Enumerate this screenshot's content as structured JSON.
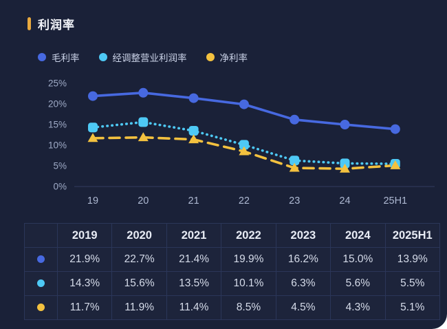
{
  "title": "利润率",
  "colors": {
    "background": "#1A2138",
    "accent_bar": "#E9A93F",
    "axis_text": "#9FABC7",
    "xaxis_text": "#AEB9D2",
    "axis_line": "#2A3352",
    "table_border": "#2B3659",
    "blue": "#4769E0",
    "cyan": "#4EC9F5",
    "yellow": "#F3C13F"
  },
  "chart_data": {
    "type": "line",
    "title": "利润率",
    "categories": [
      "19",
      "20",
      "21",
      "22",
      "23",
      "24",
      "25H1"
    ],
    "series": [
      {
        "key": "gross-margin",
        "name": "毛利率",
        "color": "#4769E0",
        "marker": "circle",
        "line": "solid",
        "values": [
          21.9,
          22.7,
          21.4,
          19.9,
          16.2,
          15.0,
          13.9
        ]
      },
      {
        "key": "adjusted-operating-margin",
        "name": "经调整营业利润率",
        "color": "#4EC9F5",
        "marker": "square",
        "line": "dotted",
        "values": [
          14.3,
          15.6,
          13.5,
          10.1,
          6.3,
          5.6,
          5.5
        ]
      },
      {
        "key": "net-margin",
        "name": "净利率",
        "color": "#F3C13F",
        "marker": "triangle",
        "line": "dashed",
        "values": [
          11.7,
          11.9,
          11.4,
          8.5,
          4.5,
          4.3,
          5.1
        ]
      }
    ],
    "ylim": [
      0,
      25
    ],
    "yticks": [
      "25%",
      "20%",
      "15%",
      "10%",
      "5%",
      "0%"
    ],
    "ytick_values": [
      25,
      20,
      15,
      10,
      5,
      0
    ],
    "grid": false,
    "legend_position": "top"
  },
  "table": {
    "headers": [
      "",
      "2019",
      "2020",
      "2021",
      "2022",
      "2023",
      "2024",
      "2025H1"
    ],
    "rows": [
      {
        "series": "毛利率",
        "dot_color": "#4769E0",
        "values": [
          "21.9%",
          "22.7%",
          "21.4%",
          "19.9%",
          "16.2%",
          "15.0%",
          "13.9%"
        ]
      },
      {
        "series": "经调整营业利润率",
        "dot_color": "#4EC9F5",
        "values": [
          "14.3%",
          "15.6%",
          "13.5%",
          "10.1%",
          "6.3%",
          "5.6%",
          "5.5%"
        ]
      },
      {
        "series": "净利率",
        "dot_color": "#F3C13F",
        "values": [
          "11.7%",
          "11.9%",
          "11.4%",
          "8.5%",
          "4.5%",
          "4.3%",
          "5.1%"
        ]
      }
    ]
  }
}
